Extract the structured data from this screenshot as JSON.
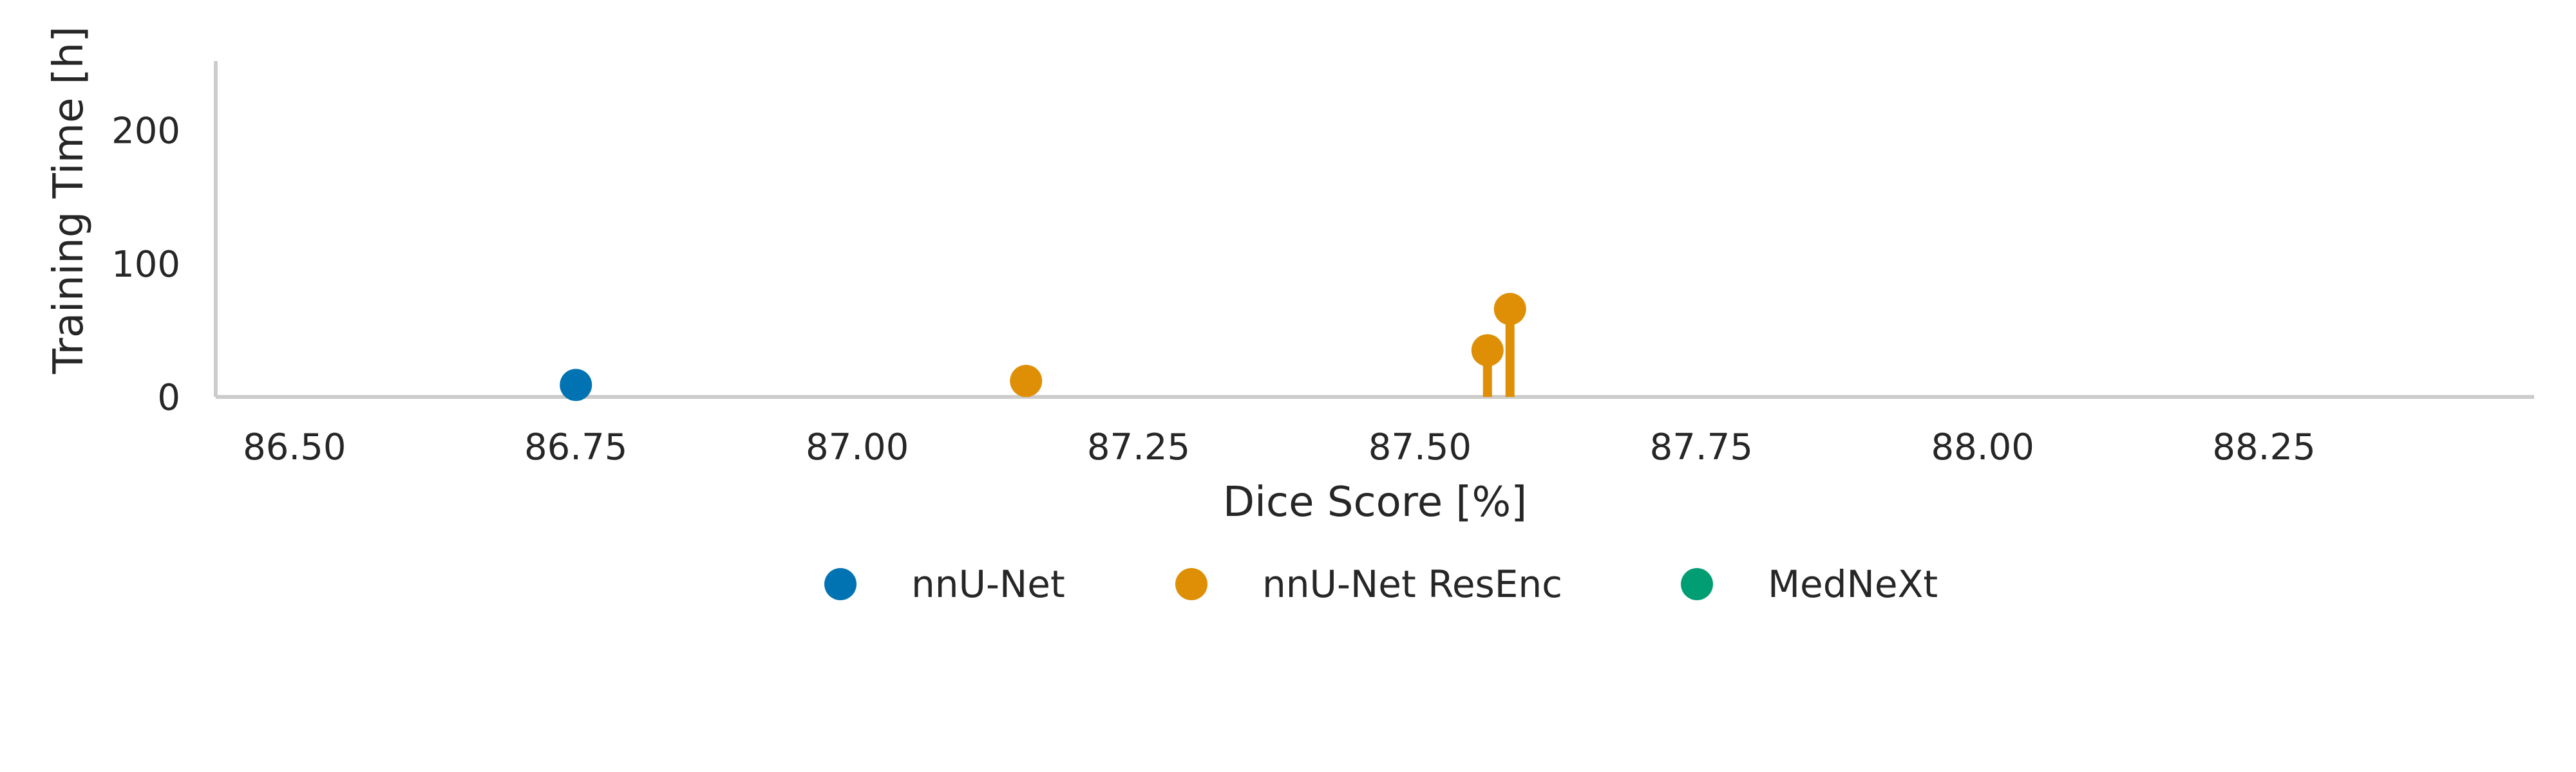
{
  "chart_data": {
    "type": "scatter",
    "title": "",
    "xlabel": "Dice Score [%]",
    "ylabel": "Training Time [h]",
    "xlim": [
      86.43,
      88.49
    ],
    "ylim": [
      0,
      252
    ],
    "xticks": [
      86.5,
      86.75,
      87.0,
      87.25,
      87.5,
      87.75,
      88.0,
      88.25
    ],
    "xtick_labels": [
      "86.50",
      "86.75",
      "87.00",
      "87.25",
      "87.50",
      "87.75",
      "88.00",
      "88.25"
    ],
    "yticks": [
      0,
      100,
      200
    ],
    "ytick_labels": [
      "0",
      "100",
      "200"
    ],
    "grid": false,
    "legend_position": "bottom-center",
    "series": [
      {
        "name": "nnU-Net",
        "color": "#0173b2",
        "points": [
          {
            "x": 86.75,
            "y": 9
          }
        ]
      },
      {
        "name": "nnU-Net ResEnc",
        "color": "#de8f05",
        "points": [
          {
            "x": 87.15,
            "y": 12
          },
          {
            "x": 87.56,
            "y": 35
          },
          {
            "x": 87.58,
            "y": 66
          }
        ]
      },
      {
        "name": "MedNeXt",
        "color": "#029e73",
        "points": []
      }
    ]
  }
}
